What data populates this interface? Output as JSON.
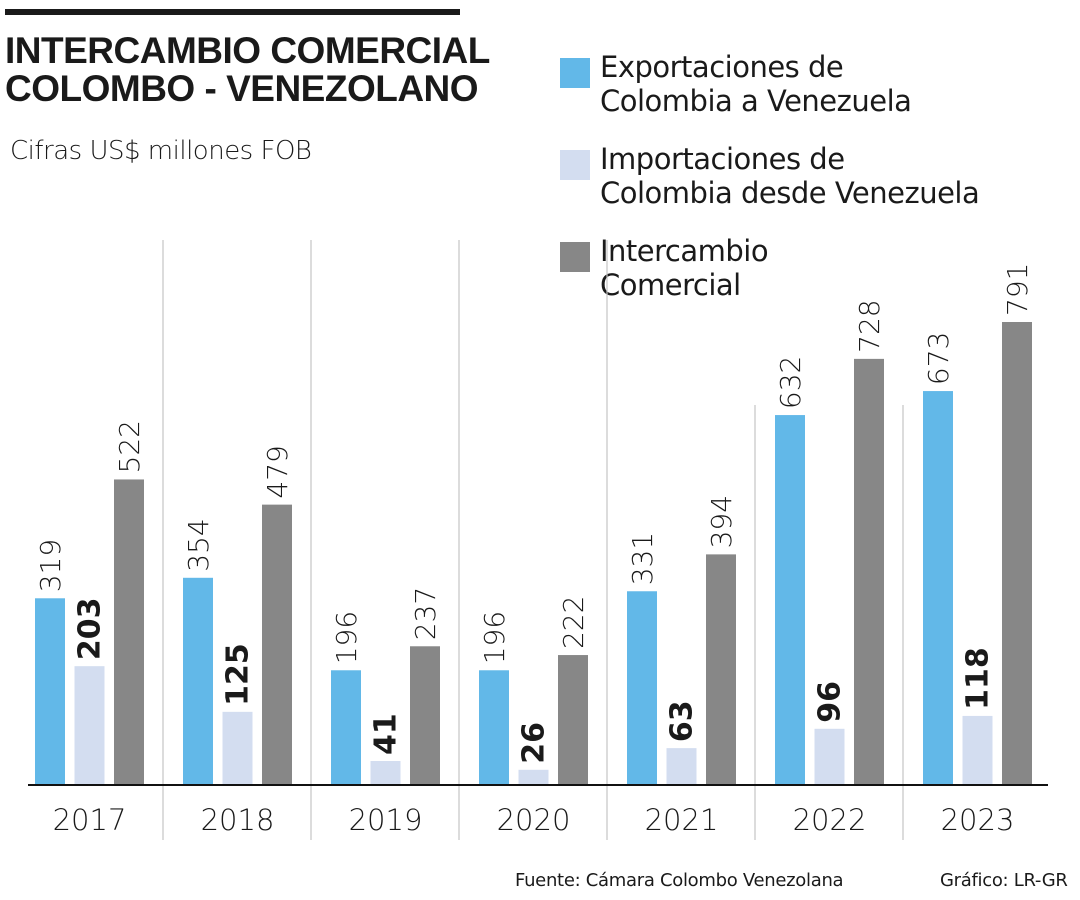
{
  "title_line1": "INTERCAMBIO COMERCIAL",
  "title_line2": "COLOMBO - VENEZOLANO",
  "subtitle": "Cifras US$ millones FOB",
  "source": "Fuente: Cámara Colombo Venezolana",
  "credit": "Gráfico: LR-GR",
  "chart_data": {
    "type": "bar",
    "categories": [
      "2017",
      "2018",
      "2019",
      "2020",
      "2021",
      "2022",
      "2023"
    ],
    "series": [
      {
        "name": "Exportaciones de Colombia a Venezuela",
        "legend_line1": "Exportaciones de",
        "legend_line2": "Colombia a Venezuela",
        "color": "#62b8e8",
        "label_bold": false,
        "values": [
          319,
          354,
          196,
          196,
          331,
          632,
          673
        ]
      },
      {
        "name": "Importaciones de Colombia desde Venezuela",
        "legend_line1": "Importaciones de",
        "legend_line2": "Colombia desde Venezuela",
        "color": "#d3ddf0",
        "label_bold": true,
        "values": [
          203,
          125,
          41,
          26,
          63,
          96,
          118
        ]
      },
      {
        "name": "Intercambio Comercial",
        "legend_line1": "Intercambio",
        "legend_line2": "Comercial",
        "color": "#878787",
        "label_bold": false,
        "values": [
          522,
          479,
          237,
          222,
          394,
          728,
          791
        ]
      }
    ],
    "ylim": [
      0,
      800
    ],
    "grid": false,
    "legend_position": "top-right"
  }
}
